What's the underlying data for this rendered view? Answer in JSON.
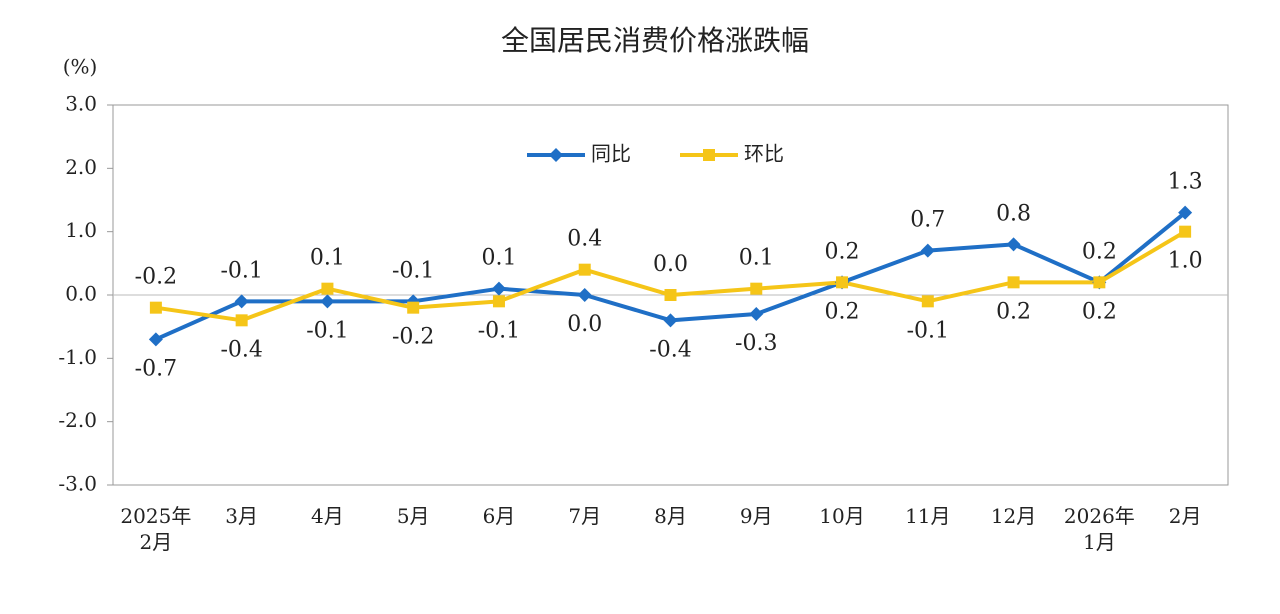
{
  "chart_data": {
    "type": "line",
    "title": "全国居民消费价格涨跌幅",
    "ylabel": "(%)",
    "categories": [
      "2025年\n2月",
      "3月",
      "4月",
      "5月",
      "6月",
      "7月",
      "8月",
      "9月",
      "10月",
      "11月",
      "12月",
      "2026年\n1月",
      "2月"
    ],
    "series": [
      {
        "name": "同比",
        "color": "#1f6fc6",
        "marker": "diamond",
        "values": [
          -0.7,
          -0.1,
          -0.1,
          -0.1,
          0.1,
          0.0,
          -0.4,
          -0.3,
          0.2,
          0.7,
          0.8,
          0.2,
          1.3
        ],
        "value_labels": [
          "-0.7",
          "-0.1",
          "-0.1",
          "-0.1",
          "0.1",
          "0.0",
          "-0.4",
          "-0.3",
          "0.2",
          "0.7",
          "0.8",
          "0.2",
          "1.3"
        ]
      },
      {
        "name": "环比",
        "color": "#f5c518",
        "marker": "square",
        "values": [
          -0.2,
          -0.4,
          0.1,
          -0.2,
          -0.1,
          0.4,
          0.0,
          0.1,
          0.2,
          -0.1,
          0.2,
          0.2,
          1.0
        ],
        "value_labels": [
          "-0.2",
          "-0.4",
          "0.1",
          "-0.2",
          "-0.1",
          "0.4",
          "0.0",
          "0.1",
          "0.2",
          "-0.1",
          "0.2",
          "0.2",
          "1.0"
        ]
      }
    ],
    "ylim": [
      -3.0,
      3.0
    ],
    "yticks": [
      {
        "value": -3,
        "label": "-3.0"
      },
      {
        "value": -2,
        "label": "-2.0"
      },
      {
        "value": -1,
        "label": "-1.0"
      },
      {
        "value": 0,
        "label": "0.0"
      },
      {
        "value": 1,
        "label": "1.0"
      },
      {
        "value": 2,
        "label": "2.0"
      },
      {
        "value": 3,
        "label": "3.0"
      }
    ],
    "legend": "top-center"
  }
}
